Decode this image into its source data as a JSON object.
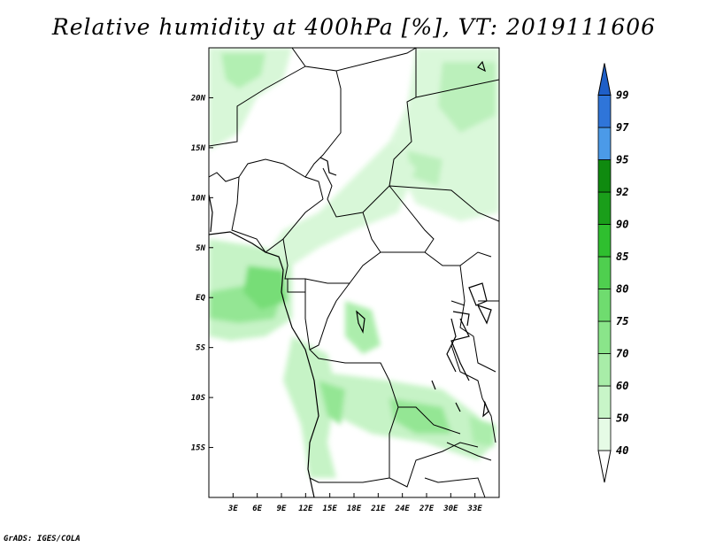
{
  "title": "Relative humidity at 400hPa [%], VT: 2019111606",
  "credit": "GrADS: IGES/COLA",
  "map": {
    "lon_range": [
      0,
      36
    ],
    "lat_range": [
      -20,
      25
    ],
    "lon_ticks": [
      "3E",
      "6E",
      "9E",
      "12E",
      "15E",
      "18E",
      "21E",
      "24E",
      "27E",
      "30E",
      "33E"
    ],
    "lat_ticks": [
      "20N",
      "15N",
      "10N",
      "5N",
      "EQ",
      "5S",
      "10S",
      "15S"
    ]
  },
  "colorbar": {
    "levels": [
      "40",
      "50",
      "60",
      "70",
      "75",
      "80",
      "85",
      "90",
      "92",
      "95",
      "97",
      "99"
    ],
    "colors": [
      "#ffffff",
      "#e6fbe6",
      "#c8f5c8",
      "#a8eda8",
      "#8ae58a",
      "#6fdc6f",
      "#4fcf4f",
      "#2fbf2f",
      "#1a9e1a",
      "#0f8a0f",
      "#4b9ae8",
      "#2f75d9",
      "#1f5fc7"
    ]
  }
}
